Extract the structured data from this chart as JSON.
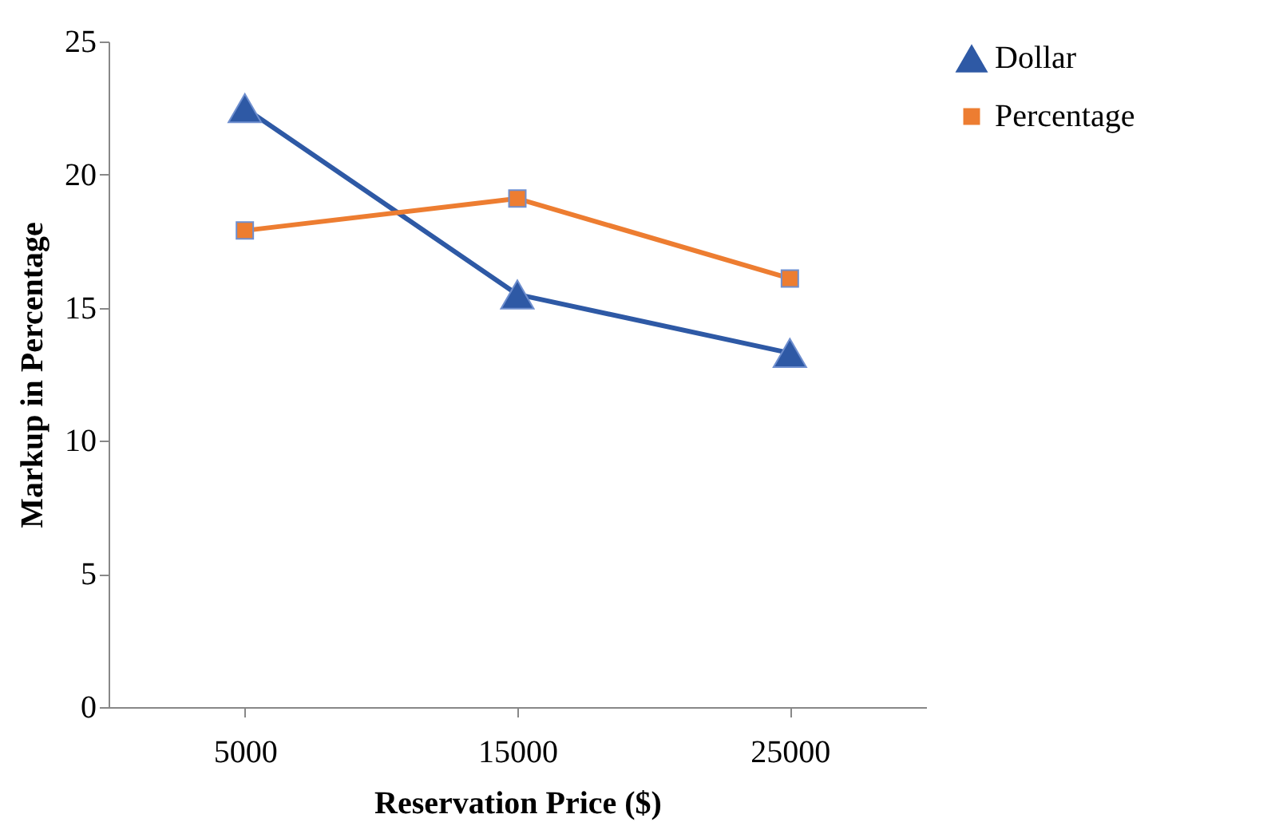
{
  "chart_data": {
    "type": "line",
    "xlabel": "Reservation Price ($)",
    "ylabel": "Markup in Percentage",
    "categories": [
      "5000",
      "15000",
      "25000"
    ],
    "series": [
      {
        "name": "Dollar",
        "color": "#2e59a5",
        "marker": "triangle",
        "values": [
          22.5,
          15.5,
          13.3
        ]
      },
      {
        "name": "Percentage",
        "color": "#ed7d31",
        "marker": "square",
        "values": [
          17.9,
          19.1,
          16.1
        ]
      }
    ],
    "ylim": [
      0,
      25
    ],
    "yticks": [
      0,
      5,
      10,
      15,
      20,
      25
    ],
    "grid": false,
    "legend": "right"
  }
}
